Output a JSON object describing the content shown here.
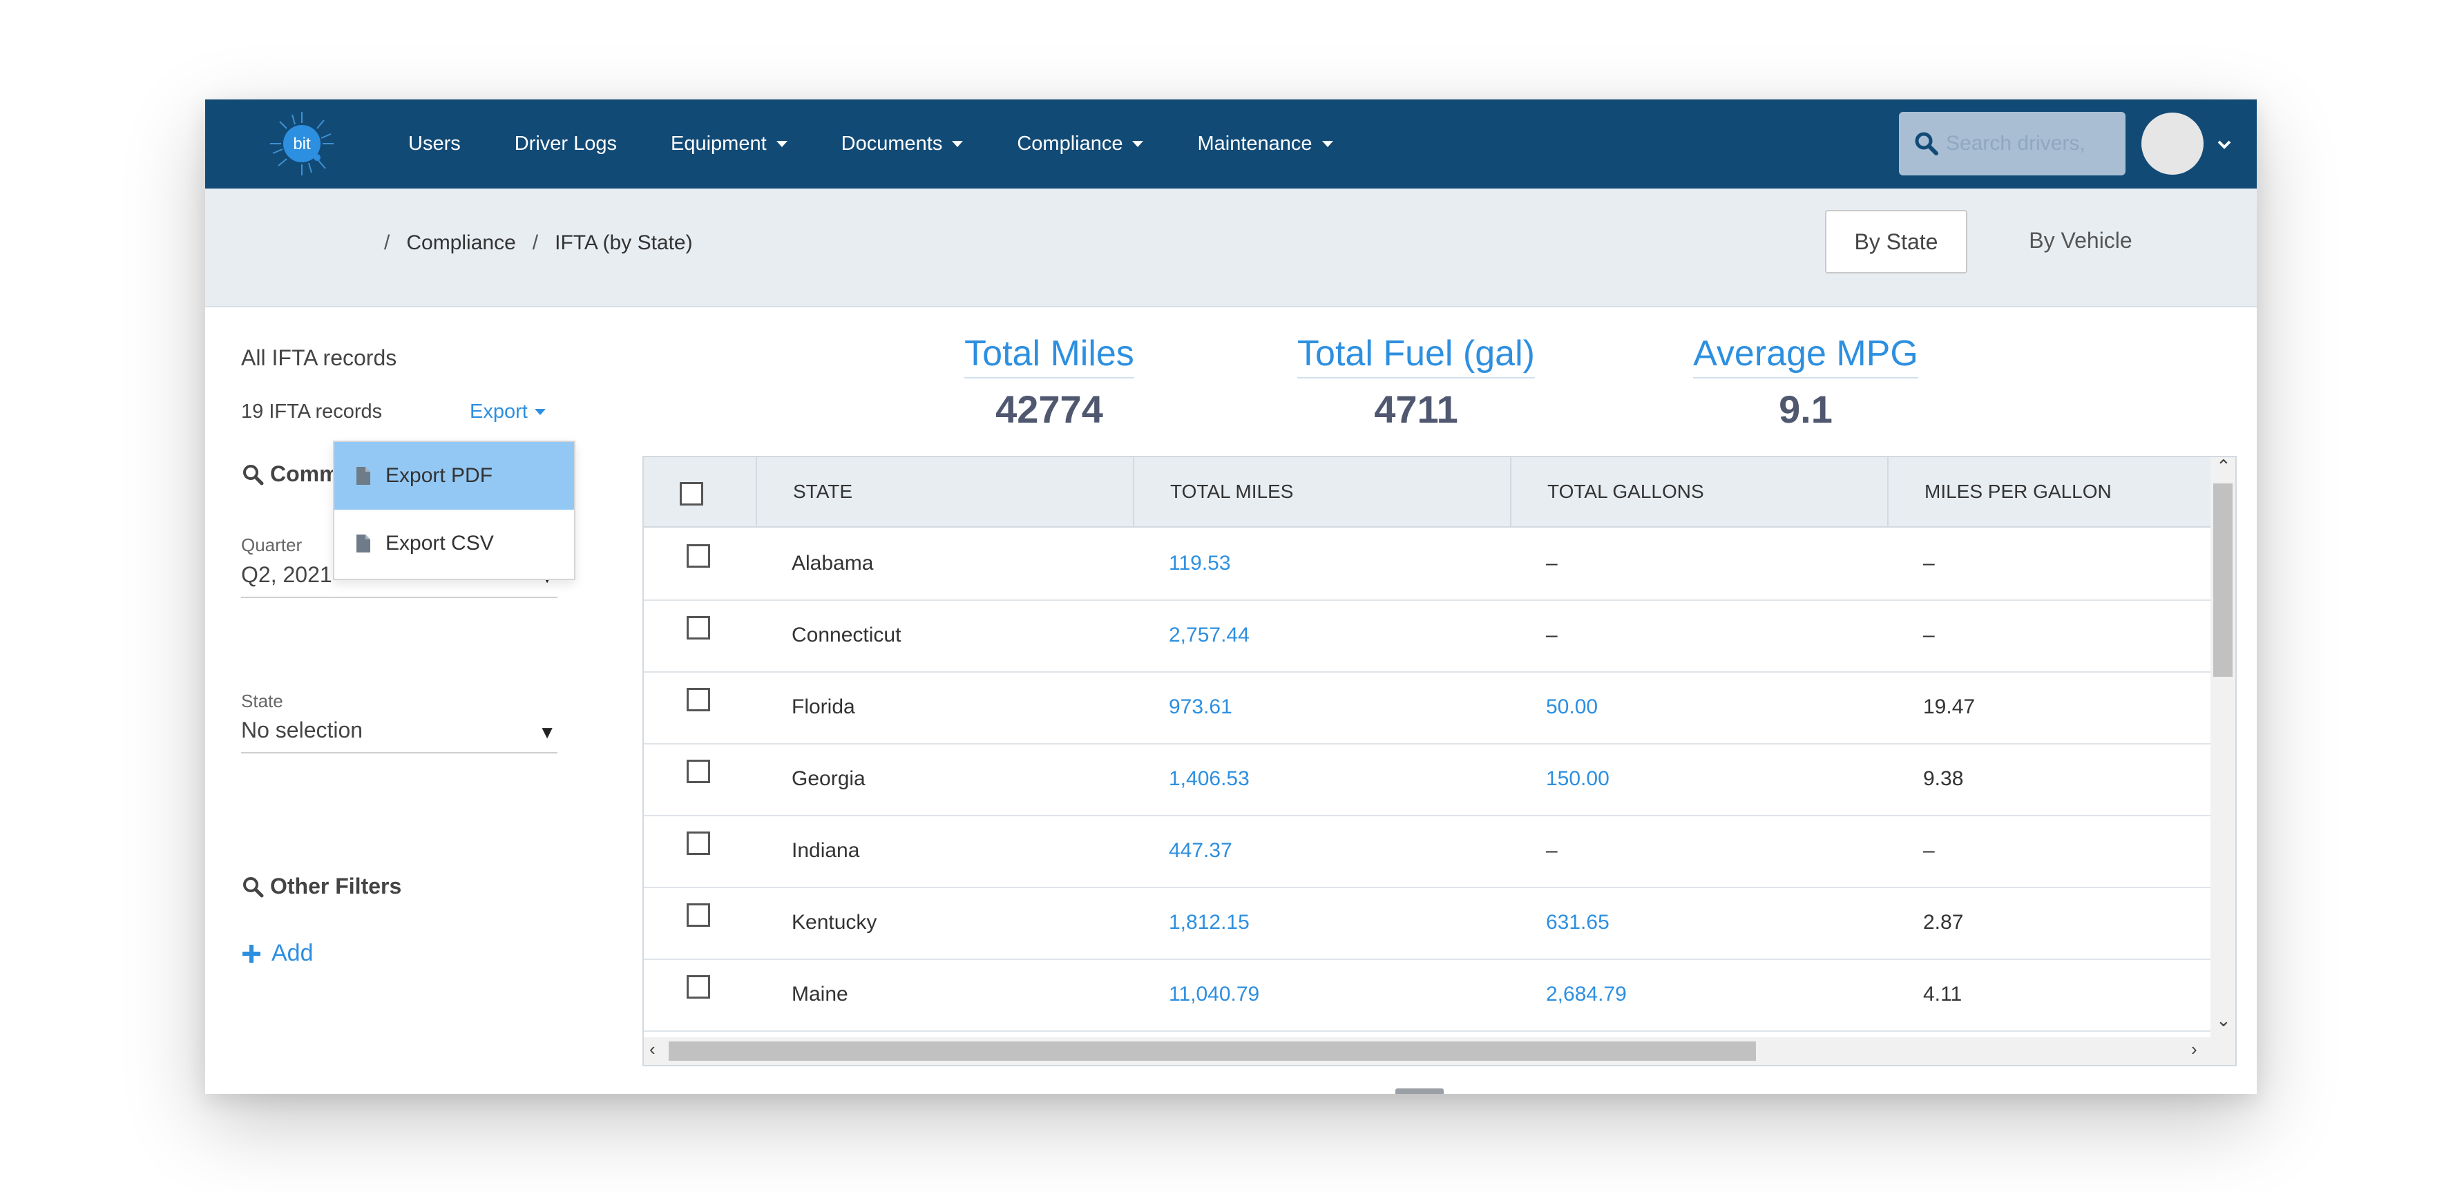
{
  "nav": {
    "logo_text": "bit",
    "items": [
      "Users",
      "Driver Logs",
      "Equipment",
      "Documents",
      "Compliance",
      "Maintenance"
    ],
    "dropdown_items": [
      false,
      false,
      true,
      true,
      true,
      true
    ],
    "search_placeholder": "Search drivers,"
  },
  "breadcrumb": {
    "sep1": "/",
    "item1": "Compliance",
    "sep2": "/",
    "item2": "IFTA (by State)"
  },
  "view_toggle": {
    "by_state": "By State",
    "by_vehicle": "By Vehicle"
  },
  "left_panel": {
    "title": "All IFTA records",
    "record_count": "19 IFTA records",
    "export_label": "Export",
    "common_filters_partial": "Comm",
    "quarter_label": "Quarter",
    "quarter_value": "Q2, 2021",
    "state_label": "State",
    "state_value": "No selection",
    "other_filters": "Other Filters",
    "add_label": "Add"
  },
  "export_menu": {
    "pdf": "Export PDF",
    "csv": "Export CSV"
  },
  "stats": {
    "total_miles_label": "Total Miles",
    "total_miles_value": "42774",
    "total_fuel_label": "Total Fuel (gal)",
    "total_fuel_value": "4711",
    "avg_mpg_label": "Average MPG",
    "avg_mpg_value": "9.1"
  },
  "table": {
    "headers": [
      "STATE",
      "TOTAL MILES",
      "TOTAL GALLONS",
      "MILES PER GALLON"
    ],
    "rows": [
      {
        "state": "Alabama",
        "miles": "119.53",
        "gallons": "–",
        "mpg": "–"
      },
      {
        "state": "Connecticut",
        "miles": "2,757.44",
        "gallons": "–",
        "mpg": "–"
      },
      {
        "state": "Florida",
        "miles": "973.61",
        "gallons": "50.00",
        "mpg": "19.47"
      },
      {
        "state": "Georgia",
        "miles": "1,406.53",
        "gallons": "150.00",
        "mpg": "9.38"
      },
      {
        "state": "Indiana",
        "miles": "447.37",
        "gallons": "–",
        "mpg": "–"
      },
      {
        "state": "Kentucky",
        "miles": "1,812.15",
        "gallons": "631.65",
        "mpg": "2.87"
      },
      {
        "state": "Maine",
        "miles": "11,040.79",
        "gallons": "2,684.79",
        "mpg": "4.11"
      }
    ]
  },
  "colors": {
    "nav_bg": "#124a76",
    "accent": "#2d8fe0",
    "subbar_bg": "#e8edf2",
    "export_highlight": "#93c8f4"
  }
}
